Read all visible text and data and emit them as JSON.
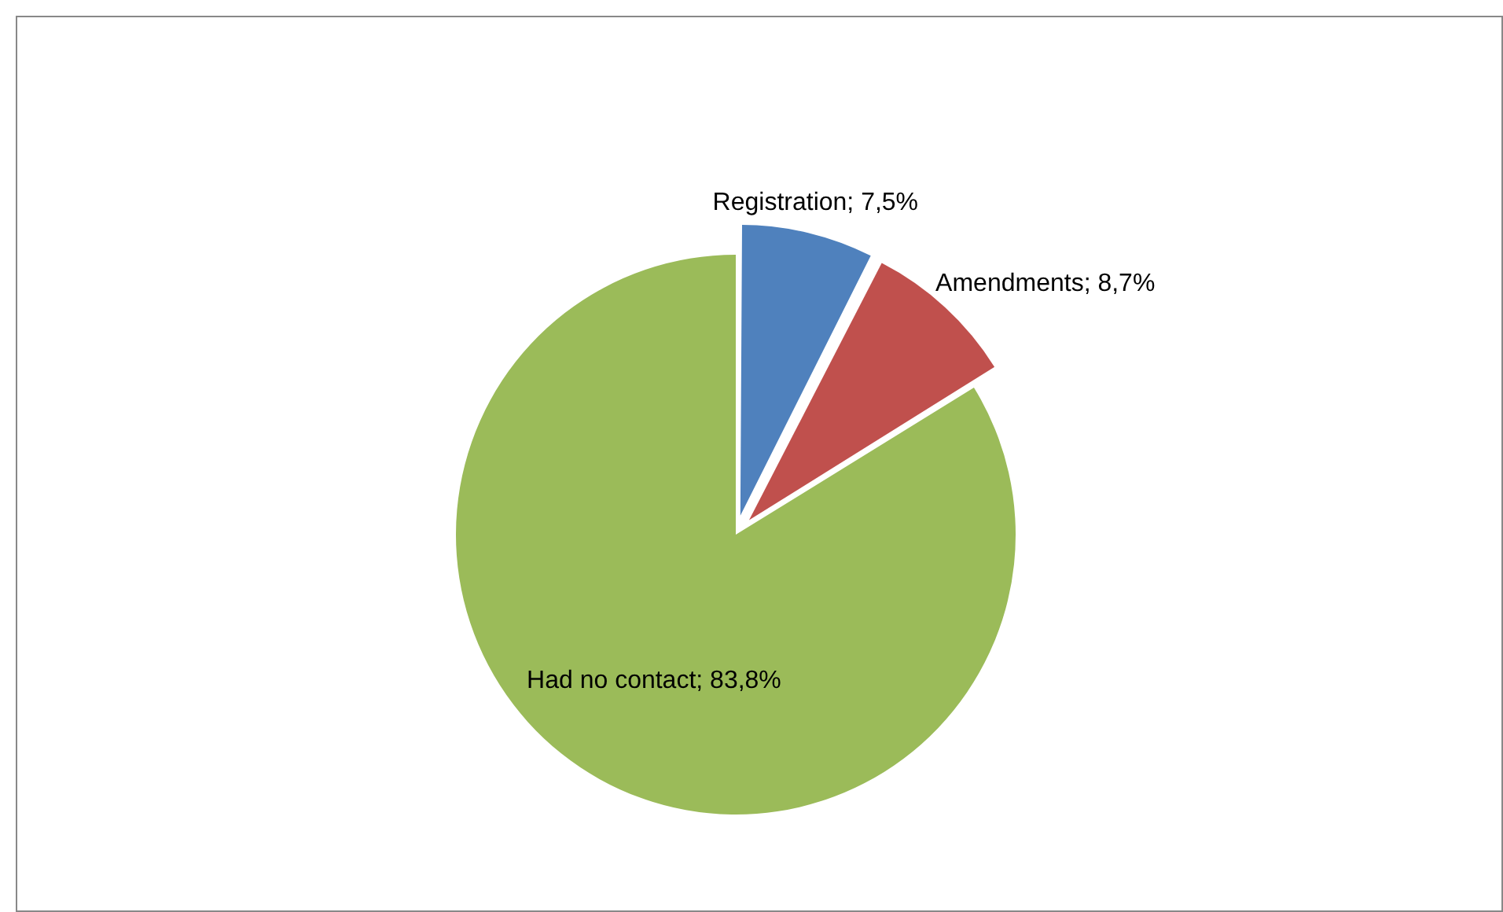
{
  "chart_data": {
    "type": "pie",
    "categories": [
      "Registration",
      "Amendments",
      "Had no contact"
    ],
    "values": [
      7.5,
      8.7,
      83.8
    ],
    "colors": [
      "#4f81bd",
      "#c0504d",
      "#9bbb59"
    ],
    "value_labels": [
      "7,5%",
      "8,7%",
      "83,8%"
    ],
    "legend": false
  }
}
